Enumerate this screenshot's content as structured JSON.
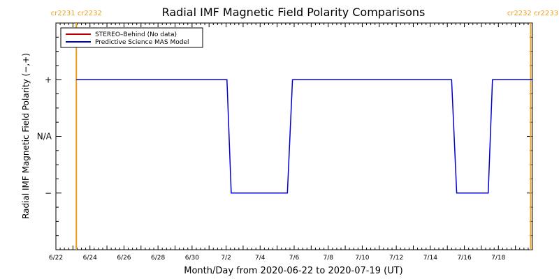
{
  "chart_data": {
    "type": "line",
    "title": "Radial IMF Magnetic Field Polarity Comparisons",
    "xlabel": "Month/Day from 2020-06-22 to 2020-07-19 (UT)",
    "ylabel": "Radial IMF Magnetic Field Polarity (−,+)",
    "x_ticks": [
      {
        "day": 0,
        "label": "6/22"
      },
      {
        "day": 2,
        "label": "6/24"
      },
      {
        "day": 4,
        "label": "6/26"
      },
      {
        "day": 6,
        "label": "6/28"
      },
      {
        "day": 8,
        "label": "6/30"
      },
      {
        "day": 10,
        "label": "7/2"
      },
      {
        "day": 12,
        "label": "7/4"
      },
      {
        "day": 14,
        "label": "7/6"
      },
      {
        "day": 16,
        "label": "7/8"
      },
      {
        "day": 18,
        "label": "7/10"
      },
      {
        "day": 20,
        "label": "7/12"
      },
      {
        "day": 22,
        "label": "7/14"
      },
      {
        "day": 24,
        "label": "7/16"
      },
      {
        "day": 26,
        "label": "7/18"
      }
    ],
    "y_ticks": [
      {
        "value": 1,
        "label": "+"
      },
      {
        "value": 0,
        "label": "N/A"
      },
      {
        "value": -1,
        "label": "−"
      }
    ],
    "xlim": [
      0,
      28
    ],
    "ylim": [
      -2,
      2
    ],
    "carrington_rotations": [
      {
        "day": 1.2,
        "labels": [
          "cr2231",
          "cr2232"
        ]
      },
      {
        "day": 27.9,
        "labels": [
          "cr2232",
          "cr2233"
        ]
      }
    ],
    "series": [
      {
        "name": "STEREO–Behind (No data)",
        "color": "#c00000",
        "x": [],
        "y": []
      },
      {
        "name": "Predictive Science MAS Model",
        "color": "#0000cc",
        "x": [
          1.2,
          10.05,
          10.3,
          13.6,
          13.9,
          23.25,
          23.55,
          25.4,
          25.65,
          28.0
        ],
        "y": [
          1,
          1,
          -1,
          -1,
          1,
          1,
          -1,
          -1,
          1,
          1
        ]
      }
    ],
    "legend": "top-left",
    "grid": false
  },
  "colors": {
    "rotation_marker": "#e8a020"
  }
}
